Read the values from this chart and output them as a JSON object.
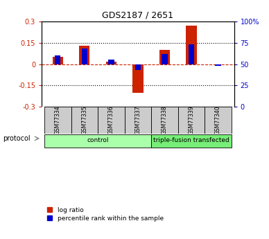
{
  "title": "GDS2187 / 2651",
  "samples": [
    "GSM77334",
    "GSM77335",
    "GSM77336",
    "GSM77337",
    "GSM77338",
    "GSM77339",
    "GSM77340"
  ],
  "log_ratio": [
    0.05,
    0.13,
    0.02,
    -0.2,
    0.1,
    0.27,
    0.0
  ],
  "percentile_rank": [
    60,
    68,
    55,
    43,
    62,
    73,
    48
  ],
  "ylim_left": [
    -0.3,
    0.3
  ],
  "ylim_right": [
    0,
    100
  ],
  "yticks_left": [
    -0.3,
    -0.15,
    0.0,
    0.15,
    0.3
  ],
  "yticks_right": [
    0,
    25,
    50,
    75,
    100
  ],
  "ytick_labels_left": [
    "-0.3",
    "-0.15",
    "0",
    "0.15",
    "0.3"
  ],
  "ytick_labels_right": [
    "0",
    "25",
    "50",
    "75",
    "100%"
  ],
  "groups": [
    {
      "label": "control",
      "indices": [
        0,
        1,
        2,
        3
      ],
      "color": "#aaffaa"
    },
    {
      "label": "triple-fusion transfected",
      "indices": [
        4,
        5,
        6
      ],
      "color": "#77ee77"
    }
  ],
  "log_ratio_color": "#cc2200",
  "percentile_color": "#0000cc",
  "zero_line_color": "#cc2200",
  "dotted_line_color": "#000000",
  "sample_box_color": "#cccccc",
  "protocol_label": "protocol",
  "legend_log_ratio": "log ratio",
  "legend_percentile": "percentile rank within the sample",
  "background_color": "#ffffff"
}
